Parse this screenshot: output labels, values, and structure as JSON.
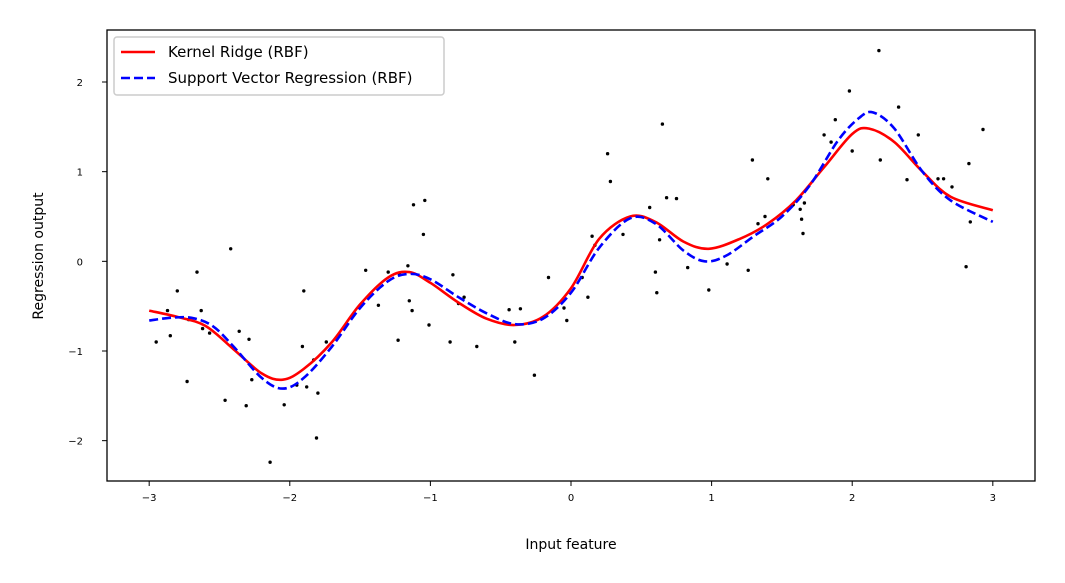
{
  "chart_data": {
    "type": "line",
    "xlabel": "Input feature",
    "ylabel": "Regression output",
    "xlim": [
      -3.3,
      3.3
    ],
    "ylim": [
      -2.45,
      2.58
    ],
    "xticks": [
      -3,
      -2,
      -1,
      0,
      1,
      2,
      3
    ],
    "xtick_labels": [
      "−3",
      "−2",
      "−1",
      "0",
      "1",
      "2",
      "3"
    ],
    "yticks": [
      -2,
      -1,
      0,
      1,
      2
    ],
    "ytick_labels": [
      "−2",
      "−1",
      "0",
      "1",
      "2"
    ],
    "legend_position": "top-left",
    "series": [
      {
        "name": "Kernel Ridge (RBF)",
        "color": "#ff0000",
        "style": "solid",
        "x": [
          -3.0,
          -2.8,
          -2.6,
          -2.4,
          -2.2,
          -2.05,
          -1.9,
          -1.7,
          -1.5,
          -1.3,
          -1.15,
          -1.0,
          -0.8,
          -0.6,
          -0.4,
          -0.2,
          0.0,
          0.2,
          0.42,
          0.6,
          0.8,
          0.98,
          1.2,
          1.4,
          1.6,
          1.8,
          2.0,
          2.12,
          2.3,
          2.5,
          2.7,
          3.0
        ],
        "y": [
          -0.55,
          -0.62,
          -0.72,
          -0.98,
          -1.25,
          -1.32,
          -1.2,
          -0.9,
          -0.48,
          -0.18,
          -0.12,
          -0.24,
          -0.46,
          -0.64,
          -0.71,
          -0.62,
          -0.3,
          0.25,
          0.5,
          0.44,
          0.22,
          0.14,
          0.25,
          0.42,
          0.68,
          1.05,
          1.42,
          1.48,
          1.33,
          1.0,
          0.72,
          0.57
        ]
      },
      {
        "name": "Support Vector Regression (RBF)",
        "color": "#0000ff",
        "style": "dashed",
        "x": [
          -3.0,
          -2.85,
          -2.7,
          -2.55,
          -2.4,
          -2.2,
          -2.05,
          -1.9,
          -1.7,
          -1.5,
          -1.3,
          -1.15,
          -1.0,
          -0.8,
          -0.6,
          -0.4,
          -0.2,
          0.0,
          0.2,
          0.42,
          0.6,
          0.8,
          0.95,
          1.1,
          1.3,
          1.5,
          1.7,
          1.9,
          2.05,
          2.15,
          2.3,
          2.5,
          2.7,
          3.0
        ],
        "y": [
          -0.66,
          -0.63,
          -0.63,
          -0.72,
          -0.95,
          -1.3,
          -1.42,
          -1.3,
          -0.95,
          -0.52,
          -0.22,
          -0.14,
          -0.2,
          -0.4,
          -0.58,
          -0.7,
          -0.64,
          -0.35,
          0.15,
          0.48,
          0.42,
          0.12,
          0.0,
          0.06,
          0.28,
          0.5,
          0.85,
          1.35,
          1.6,
          1.66,
          1.48,
          1.0,
          0.68,
          0.44
        ]
      }
    ],
    "scatter": {
      "color": "#000000",
      "points": [
        [
          -2.95,
          -0.9
        ],
        [
          -2.87,
          -0.55
        ],
        [
          -2.85,
          -0.83
        ],
        [
          -2.8,
          -0.33
        ],
        [
          -2.73,
          -1.34
        ],
        [
          -2.72,
          -0.65
        ],
        [
          -2.66,
          -0.12
        ],
        [
          -2.63,
          -0.55
        ],
        [
          -2.62,
          -0.75
        ],
        [
          -2.57,
          -0.8
        ],
        [
          -2.46,
          -1.55
        ],
        [
          -2.42,
          0.14
        ],
        [
          -2.36,
          -0.78
        ],
        [
          -2.31,
          -1.61
        ],
        [
          -2.29,
          -0.87
        ],
        [
          -2.27,
          -1.32
        ],
        [
          -2.14,
          -2.24
        ],
        [
          -2.04,
          -1.6
        ],
        [
          -1.95,
          -1.38
        ],
        [
          -1.91,
          -0.95
        ],
        [
          -1.9,
          -0.33
        ],
        [
          -1.88,
          -1.4
        ],
        [
          -1.83,
          -1.1
        ],
        [
          -1.81,
          -1.97
        ],
        [
          -1.8,
          -1.47
        ],
        [
          -1.74,
          -0.9
        ],
        [
          -1.46,
          -0.1
        ],
        [
          -1.37,
          -0.49
        ],
        [
          -1.3,
          -0.12
        ],
        [
          -1.23,
          -0.88
        ],
        [
          -1.22,
          -0.15
        ],
        [
          -1.16,
          -0.05
        ],
        [
          -1.15,
          -0.44
        ],
        [
          -1.13,
          -0.55
        ],
        [
          -1.12,
          0.63
        ],
        [
          -1.05,
          0.3
        ],
        [
          -1.04,
          0.68
        ],
        [
          -1.01,
          -0.71
        ],
        [
          -0.86,
          -0.9
        ],
        [
          -0.84,
          -0.15
        ],
        [
          -0.8,
          -0.47
        ],
        [
          -0.76,
          -0.4
        ],
        [
          -0.67,
          -0.95
        ],
        [
          -0.44,
          -0.54
        ],
        [
          -0.4,
          -0.9
        ],
        [
          -0.36,
          -0.53
        ],
        [
          -0.26,
          -1.27
        ],
        [
          -0.16,
          -0.18
        ],
        [
          -0.05,
          -0.52
        ],
        [
          -0.03,
          -0.66
        ],
        [
          0.08,
          -0.18
        ],
        [
          0.12,
          -0.4
        ],
        [
          0.15,
          0.28
        ],
        [
          0.17,
          0.18
        ],
        [
          0.26,
          1.2
        ],
        [
          0.28,
          0.89
        ],
        [
          0.37,
          0.3
        ],
        [
          0.56,
          0.6
        ],
        [
          0.6,
          -0.12
        ],
        [
          0.61,
          -0.35
        ],
        [
          0.63,
          0.24
        ],
        [
          0.65,
          1.53
        ],
        [
          0.68,
          0.71
        ],
        [
          0.75,
          0.7
        ],
        [
          0.83,
          -0.07
        ],
        [
          0.98,
          -0.32
        ],
        [
          1.11,
          -0.03
        ],
        [
          1.26,
          -0.1
        ],
        [
          1.29,
          1.13
        ],
        [
          1.33,
          0.42
        ],
        [
          1.38,
          0.5
        ],
        [
          1.4,
          0.92
        ],
        [
          1.58,
          0.63
        ],
        [
          1.63,
          0.58
        ],
        [
          1.64,
          0.47
        ],
        [
          1.65,
          0.31
        ],
        [
          1.66,
          0.65
        ],
        [
          1.8,
          1.41
        ],
        [
          1.85,
          1.33
        ],
        [
          1.88,
          1.58
        ],
        [
          1.98,
          1.9
        ],
        [
          2.0,
          1.23
        ],
        [
          2.19,
          2.35
        ],
        [
          2.2,
          1.13
        ],
        [
          2.33,
          1.72
        ],
        [
          2.39,
          0.91
        ],
        [
          2.47,
          1.41
        ],
        [
          2.61,
          0.92
        ],
        [
          2.65,
          0.92
        ],
        [
          2.71,
          0.83
        ],
        [
          2.81,
          -0.06
        ],
        [
          2.83,
          1.09
        ],
        [
          2.84,
          0.44
        ],
        [
          2.93,
          1.47
        ]
      ]
    }
  }
}
